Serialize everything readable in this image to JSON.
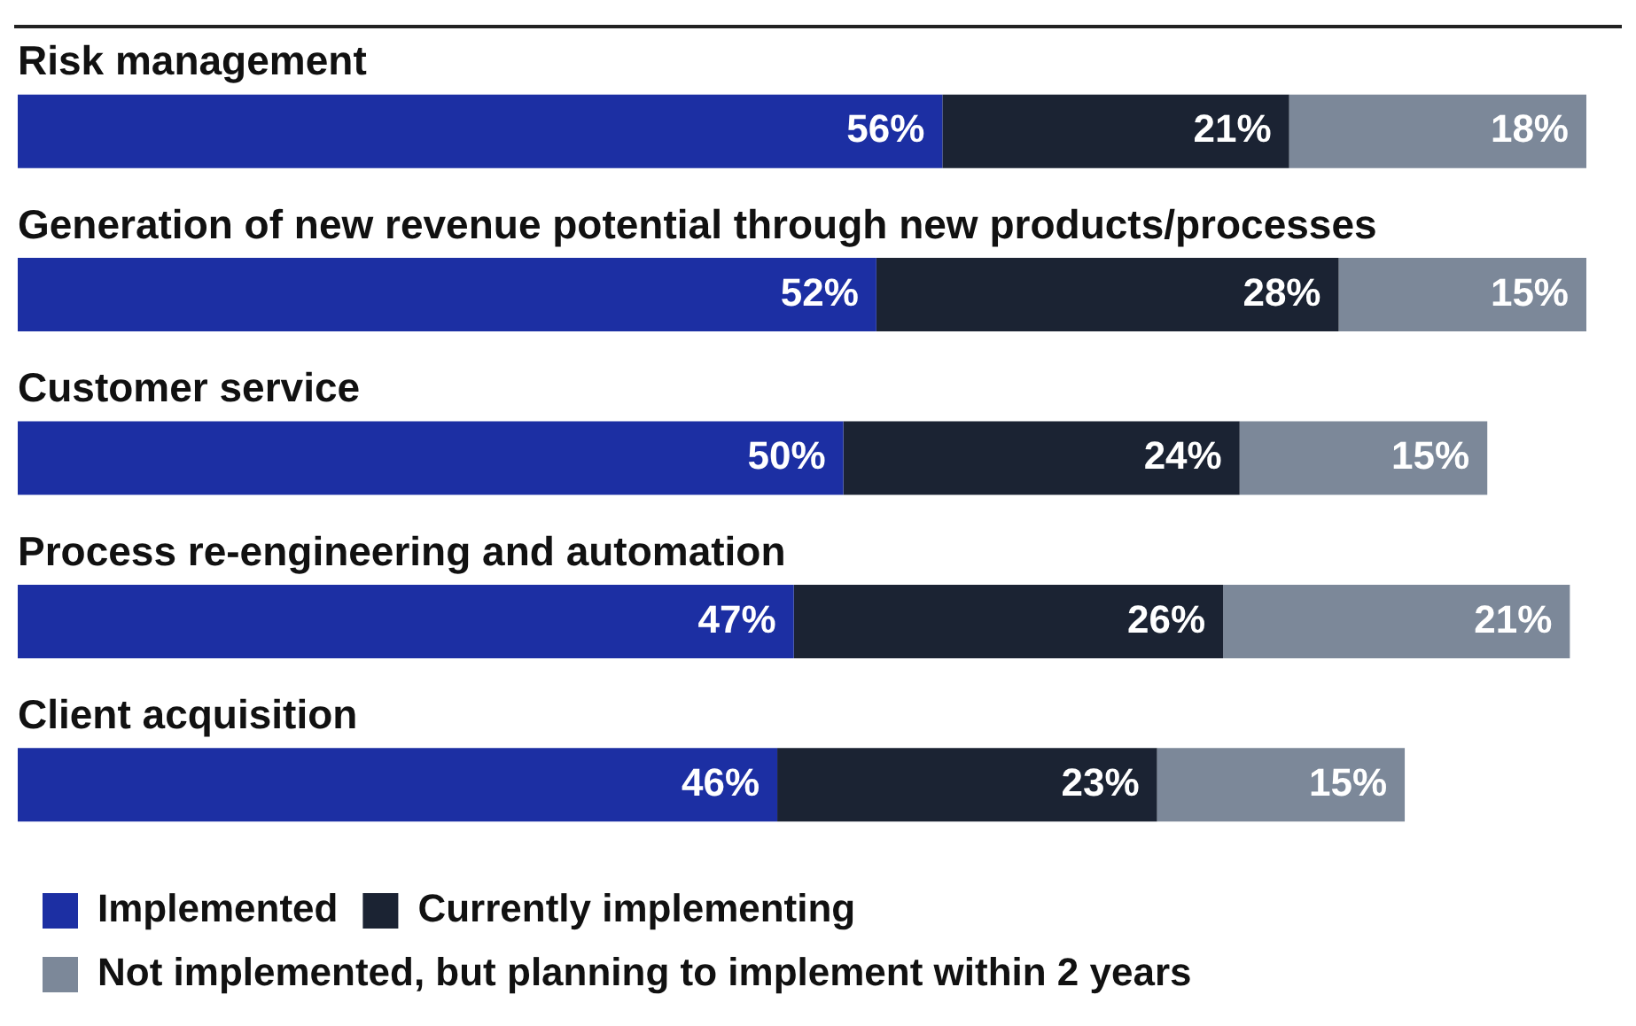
{
  "chart_data": {
    "type": "bar",
    "orientation": "horizontal",
    "stacked": true,
    "tick_labels": false,
    "legend": "bottom left",
    "categories": [
      "Risk management",
      "Generation of new revenue potential through new products/processes",
      "Customer service",
      "Process re-engineering and automation",
      "Client acquisition"
    ],
    "series": [
      {
        "name": "Implemented",
        "color": "#1c2fa3",
        "values": [
          56,
          52,
          50,
          47,
          46
        ],
        "value_labels": [
          "56%",
          "52%",
          "50%",
          "47%",
          "46%"
        ]
      },
      {
        "name": "Currently implementing",
        "color": "#1b2333",
        "values": [
          21,
          28,
          24,
          26,
          23
        ],
        "value_labels": [
          "21%",
          "28%",
          "24%",
          "26%",
          "23%"
        ]
      },
      {
        "name": "Not implemented, but planning to implement within 2 years",
        "color": "#7c8899",
        "values": [
          18,
          15,
          15,
          21,
          15
        ],
        "value_labels": [
          "18%",
          "15%",
          "15%",
          "21%",
          "15%"
        ]
      }
    ]
  }
}
